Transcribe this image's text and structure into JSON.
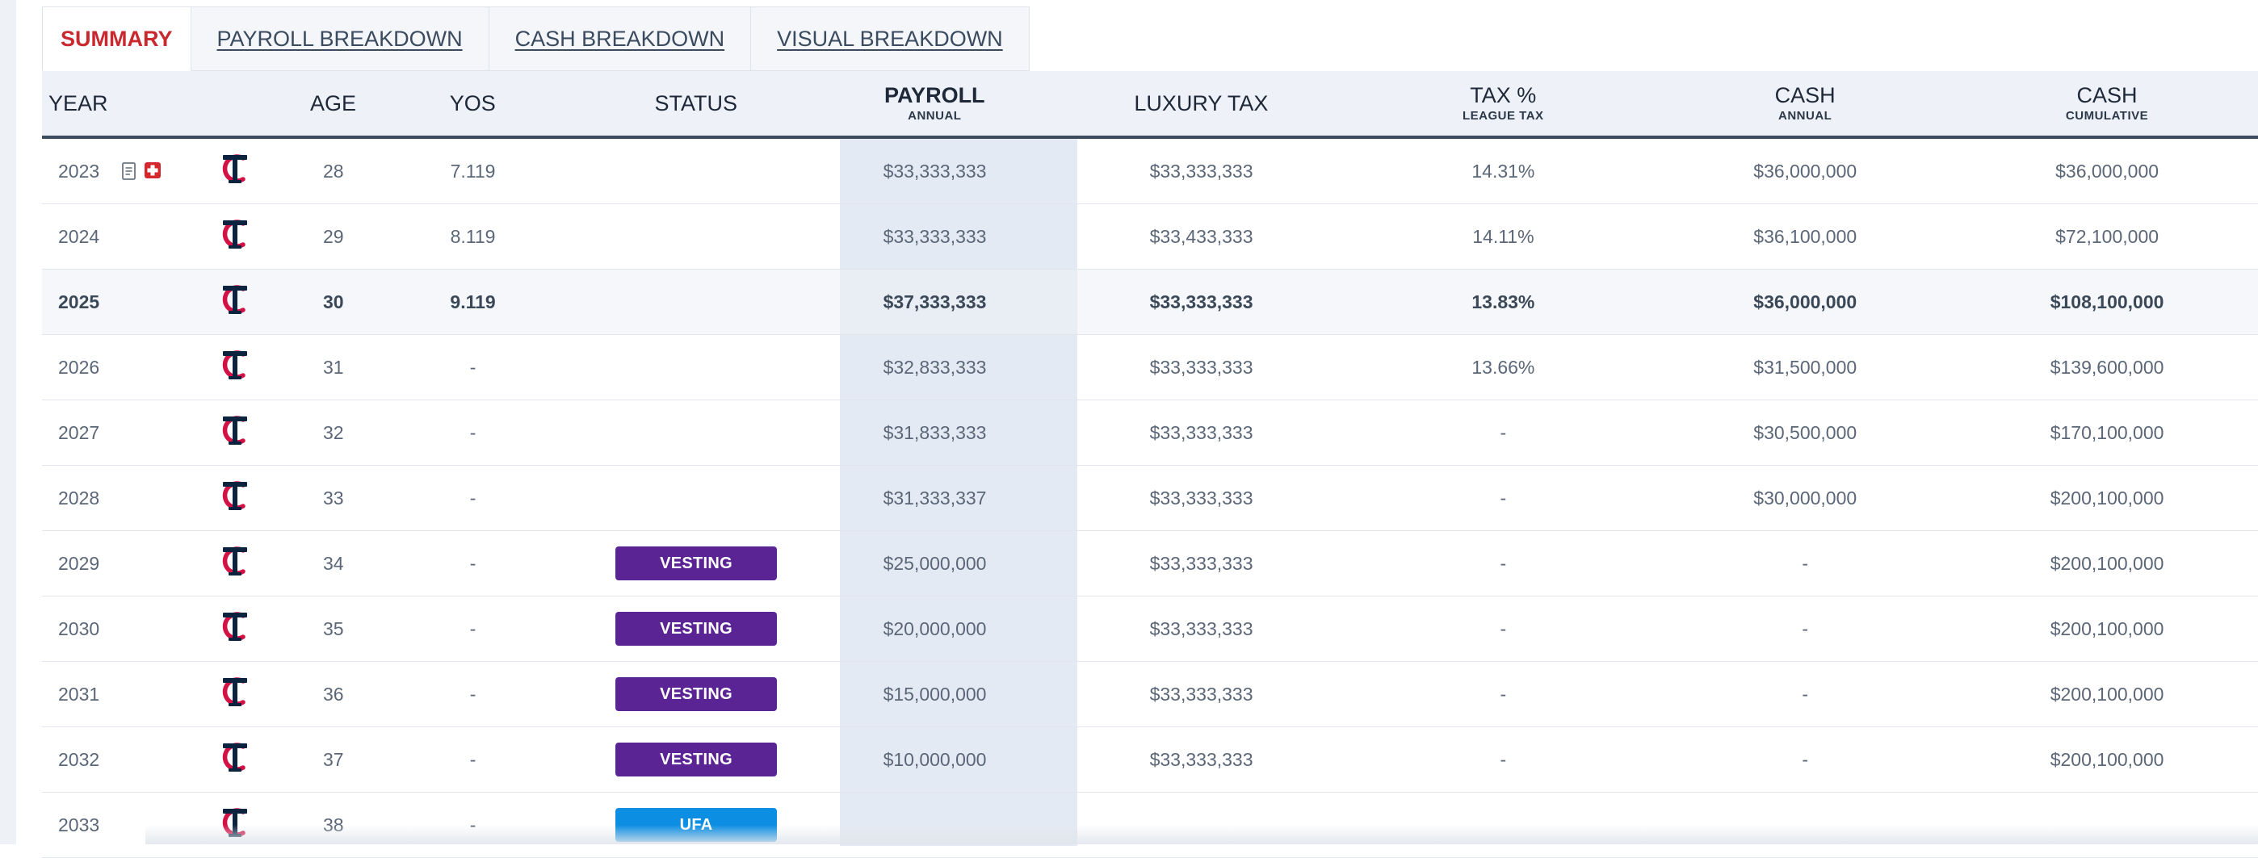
{
  "tabs": [
    {
      "label": "SUMMARY",
      "active": true
    },
    {
      "label": "PAYROLL BREAKDOWN",
      "active": false
    },
    {
      "label": "CASH BREAKDOWN",
      "active": false
    },
    {
      "label": "VISUAL BREAKDOWN",
      "active": false
    }
  ],
  "headers": {
    "year": "YEAR",
    "age": "AGE",
    "yos": "YOS",
    "status": "STATUS",
    "payroll": "PAYROLL",
    "payroll_sub": "ANNUAL",
    "luxury_tax": "LUXURY TAX",
    "tax_pct": "TAX %",
    "tax_pct_sub": "LEAGUE TAX",
    "cash": "CASH",
    "cash_sub": "ANNUAL",
    "cash_cum": "CASH",
    "cash_cum_sub": "CUMULATIVE"
  },
  "colors": {
    "accent_red": "#c8282e",
    "vesting": "#5a2494",
    "ufa": "#0c8ee3",
    "team_navy": "#0c2340",
    "team_red": "#d31145"
  },
  "team_logo_icon": "twins-tc-logo-icon",
  "rows": [
    {
      "year": "2023",
      "age": "28",
      "yos": "7.119",
      "status": "",
      "payroll": "$33,333,333",
      "luxury_tax": "$33,333,333",
      "tax_pct": "14.31%",
      "cash": "$36,000,000",
      "cash_cum": "$36,000,000",
      "icons": [
        "document-icon",
        "medical-cross-icon"
      ]
    },
    {
      "year": "2024",
      "age": "29",
      "yos": "8.119",
      "status": "",
      "payroll": "$33,333,333",
      "luxury_tax": "$33,433,333",
      "tax_pct": "14.11%",
      "cash": "$36,100,000",
      "cash_cum": "$72,100,000"
    },
    {
      "year": "2025",
      "age": "30",
      "yos": "9.119",
      "status": "",
      "payroll": "$37,333,333",
      "luxury_tax": "$33,333,333",
      "tax_pct": "13.83%",
      "cash": "$36,000,000",
      "cash_cum": "$108,100,000",
      "current": true
    },
    {
      "year": "2026",
      "age": "31",
      "yos": "-",
      "status": "",
      "payroll": "$32,833,333",
      "luxury_tax": "$33,333,333",
      "tax_pct": "13.66%",
      "cash": "$31,500,000",
      "cash_cum": "$139,600,000"
    },
    {
      "year": "2027",
      "age": "32",
      "yos": "-",
      "status": "",
      "payroll": "$31,833,333",
      "luxury_tax": "$33,333,333",
      "tax_pct": "-",
      "cash": "$30,500,000",
      "cash_cum": "$170,100,000"
    },
    {
      "year": "2028",
      "age": "33",
      "yos": "-",
      "status": "",
      "payroll": "$31,333,337",
      "luxury_tax": "$33,333,333",
      "tax_pct": "-",
      "cash": "$30,000,000",
      "cash_cum": "$200,100,000"
    },
    {
      "year": "2029",
      "age": "34",
      "yos": "-",
      "status": "VESTING",
      "payroll": "$25,000,000",
      "luxury_tax": "$33,333,333",
      "tax_pct": "-",
      "cash": "-",
      "cash_cum": "$200,100,000"
    },
    {
      "year": "2030",
      "age": "35",
      "yos": "-",
      "status": "VESTING",
      "payroll": "$20,000,000",
      "luxury_tax": "$33,333,333",
      "tax_pct": "-",
      "cash": "-",
      "cash_cum": "$200,100,000"
    },
    {
      "year": "2031",
      "age": "36",
      "yos": "-",
      "status": "VESTING",
      "payroll": "$15,000,000",
      "luxury_tax": "$33,333,333",
      "tax_pct": "-",
      "cash": "-",
      "cash_cum": "$200,100,000"
    },
    {
      "year": "2032",
      "age": "37",
      "yos": "-",
      "status": "VESTING",
      "payroll": "$10,000,000",
      "luxury_tax": "$33,333,333",
      "tax_pct": "-",
      "cash": "-",
      "cash_cum": "$200,100,000"
    },
    {
      "year": "2033",
      "age": "38",
      "yos": "-",
      "status": "UFA",
      "payroll": "",
      "luxury_tax": "",
      "tax_pct": "",
      "cash": "",
      "cash_cum": ""
    }
  ]
}
